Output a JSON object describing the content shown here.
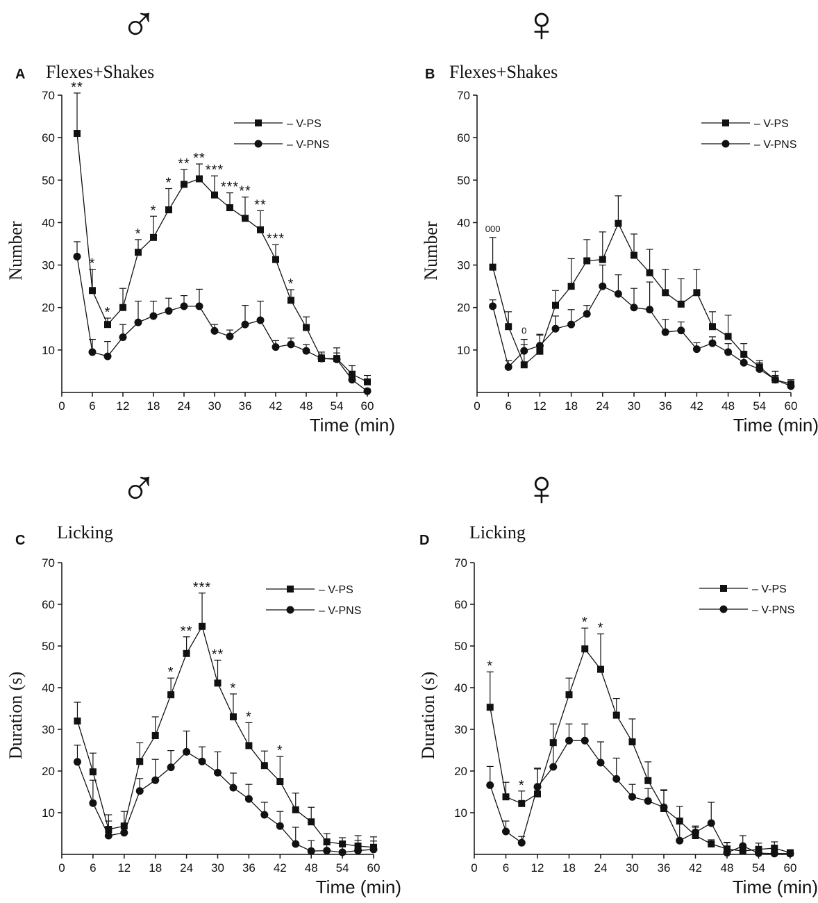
{
  "figure": {
    "symbols": {
      "male": "♂",
      "female": "♀"
    }
  },
  "chart_data": [
    {
      "type": "line",
      "panel_letter": "A",
      "title": "Flexes+Shakes",
      "sex": "male",
      "xlabel": "Time (min)",
      "ylabel": "Number",
      "xlim": [
        0,
        60
      ],
      "ylim": [
        0,
        70
      ],
      "xticks": [
        0,
        6,
        12,
        18,
        24,
        30,
        36,
        42,
        48,
        54,
        60
      ],
      "yticks": [
        10,
        20,
        30,
        40,
        50,
        60,
        70
      ],
      "legend_position": "top-right",
      "x": [
        3,
        6,
        9,
        12,
        15,
        18,
        21,
        24,
        27,
        30,
        33,
        36,
        39,
        42,
        45,
        48,
        51,
        54,
        57,
        60
      ],
      "series": [
        {
          "name": "– V-PS",
          "marker": "square",
          "values": [
            61,
            24,
            16,
            20,
            33,
            36.5,
            43,
            49,
            50.3,
            46.5,
            43.5,
            41,
            38.3,
            31.3,
            21.7,
            15.3,
            8,
            8,
            4.3,
            2.5
          ],
          "errors": [
            9.5,
            5,
            1.5,
            4.5,
            3,
            5,
            5,
            3.5,
            3.5,
            4.5,
            3.5,
            5,
            4.5,
            3.5,
            2.5,
            2.5,
            1.5,
            2.5,
            2,
            1.5
          ]
        },
        {
          "name": "– V-PNS",
          "marker": "circle",
          "values": [
            32,
            9.5,
            8.5,
            13,
            16.5,
            18,
            19.2,
            20.3,
            20.3,
            14.5,
            13.2,
            16,
            17,
            10.7,
            11.3,
            9.8,
            8,
            7.8,
            3,
            0.3
          ],
          "errors": [
            3.5,
            3,
            3.5,
            3,
            5,
            3.5,
            3,
            2.5,
            4,
            1.5,
            1.5,
            4.5,
            4.5,
            1.5,
            1.5,
            1.5,
            1,
            1.5,
            1.5,
            0.5
          ]
        }
      ],
      "annotations": [
        {
          "x": 3,
          "text": "**"
        },
        {
          "x": 6,
          "text": "*"
        },
        {
          "x": 9,
          "text": "*"
        },
        {
          "x": 15,
          "text": "*"
        },
        {
          "x": 18,
          "text": "*"
        },
        {
          "x": 21,
          "text": "*"
        },
        {
          "x": 24,
          "text": "**"
        },
        {
          "x": 27,
          "text": "**"
        },
        {
          "x": 30,
          "text": "***"
        },
        {
          "x": 33,
          "text": "***"
        },
        {
          "x": 36,
          "text": "**"
        },
        {
          "x": 39,
          "text": "**"
        },
        {
          "x": 42,
          "text": "***"
        },
        {
          "x": 45,
          "text": "*"
        }
      ]
    },
    {
      "type": "line",
      "panel_letter": "B",
      "title": "Flexes+Shakes",
      "sex": "female",
      "xlabel": "Time (min)",
      "ylabel": "Number",
      "xlim": [
        0,
        60
      ],
      "ylim": [
        0,
        70
      ],
      "xticks": [
        0,
        6,
        12,
        18,
        24,
        30,
        36,
        42,
        48,
        54,
        60
      ],
      "yticks": [
        10,
        20,
        30,
        40,
        50,
        60,
        70
      ],
      "legend_position": "top-right",
      "x": [
        3,
        6,
        9,
        12,
        15,
        18,
        21,
        24,
        27,
        30,
        33,
        36,
        39,
        42,
        45,
        48,
        51,
        54,
        57,
        60
      ],
      "series": [
        {
          "name": "– V-PS",
          "marker": "square",
          "values": [
            29.5,
            15.5,
            6.5,
            9.7,
            20.5,
            25,
            31,
            31.3,
            39.8,
            32.3,
            28.2,
            23.5,
            20.8,
            23.5,
            15.5,
            13.2,
            9,
            6,
            3,
            2
          ],
          "errors": [
            7,
            3.5,
            6,
            4,
            3.5,
            6.5,
            5,
            6.5,
            6.5,
            5,
            5.5,
            5.5,
            6,
            5.5,
            3.5,
            5,
            2.5,
            1.5,
            2,
            1
          ]
        },
        {
          "name": "– V-PNS",
          "marker": "circle",
          "values": [
            20.3,
            6,
            9.8,
            11,
            15,
            16,
            18.5,
            25,
            23.2,
            20,
            19.5,
            14.2,
            14.6,
            10.2,
            11.6,
            9.5,
            7,
            5.5,
            3,
            1.5
          ],
          "errors": [
            1.5,
            1.5,
            1.5,
            2.5,
            3,
            3.5,
            2,
            5,
            4.5,
            4.5,
            6.5,
            3,
            2,
            1.5,
            1.5,
            2,
            1.5,
            1.5,
            1,
            0.5
          ]
        }
      ],
      "annotations": [
        {
          "x": 3,
          "text": "000"
        },
        {
          "x": 9,
          "text": "0"
        }
      ]
    },
    {
      "type": "line",
      "panel_letter": "C",
      "title": "Licking",
      "sex": "male",
      "xlabel": "Time (min)",
      "ylabel": "Duration (s)",
      "xlim": [
        0,
        60
      ],
      "ylim": [
        0,
        70
      ],
      "xticks": [
        0,
        6,
        12,
        18,
        24,
        30,
        36,
        42,
        48,
        54,
        60
      ],
      "yticks": [
        10,
        20,
        30,
        40,
        50,
        60,
        70
      ],
      "legend_position": "top-right",
      "x": [
        3,
        6,
        9,
        12,
        15,
        18,
        21,
        24,
        27,
        30,
        33,
        36,
        39,
        42,
        45,
        48,
        51,
        54,
        57,
        60
      ],
      "series": [
        {
          "name": "– V-PS",
          "marker": "square",
          "values": [
            32,
            19.8,
            6,
            6.8,
            22.3,
            28.5,
            38.3,
            48.2,
            54.7,
            41.1,
            33,
            26.1,
            21.3,
            17.5,
            10.7,
            7.8,
            3,
            2.5,
            2,
            1.7
          ],
          "errors": [
            4.5,
            4.5,
            3.5,
            3.5,
            4.5,
            4.5,
            4,
            4,
            8,
            5.5,
            5.5,
            5.5,
            3.5,
            6,
            4,
            3.5,
            2,
            1.5,
            2.5,
            2.5
          ]
        },
        {
          "name": "– V-PNS",
          "marker": "circle",
          "values": [
            22.2,
            12.3,
            4.5,
            5.2,
            15.2,
            17.8,
            20.9,
            24.6,
            22.3,
            19.6,
            16,
            13.3,
            9.5,
            6.8,
            2.5,
            0.8,
            0.9,
            0.5,
            0.9,
            1.2
          ],
          "errors": [
            4,
            5.5,
            3.5,
            2,
            3,
            5,
            4,
            5,
            3.5,
            5,
            3.5,
            3.5,
            3,
            3.5,
            4,
            2.5,
            1.5,
            1.5,
            2.5,
            2
          ]
        }
      ],
      "annotations": [
        {
          "x": 21,
          "text": "*"
        },
        {
          "x": 24,
          "text": "**"
        },
        {
          "x": 27,
          "text": "***"
        },
        {
          "x": 30,
          "text": "**"
        },
        {
          "x": 33,
          "text": "*"
        },
        {
          "x": 36,
          "text": "*"
        },
        {
          "x": 42,
          "text": "*"
        }
      ]
    },
    {
      "type": "line",
      "panel_letter": "D",
      "title": "Licking",
      "sex": "female",
      "xlabel": "Time (min)",
      "ylabel": "Duration (s)",
      "xlim": [
        0,
        60
      ],
      "ylim": [
        0,
        70
      ],
      "xticks": [
        0,
        6,
        12,
        18,
        24,
        30,
        36,
        42,
        48,
        54,
        60
      ],
      "yticks": [
        10,
        20,
        30,
        40,
        50,
        60,
        70
      ],
      "legend_position": "top-right",
      "x": [
        3,
        6,
        9,
        12,
        15,
        18,
        21,
        24,
        27,
        30,
        33,
        36,
        39,
        42,
        45,
        48,
        51,
        54,
        57,
        60
      ],
      "series": [
        {
          "name": "– V-PS",
          "marker": "square",
          "values": [
            35.3,
            13.8,
            12.2,
            14.5,
            26.8,
            38.3,
            49.3,
            44.4,
            33.4,
            27,
            17.7,
            11,
            8,
            4.5,
            2.5,
            1.3,
            0.8,
            1.2,
            1.5,
            0.4
          ],
          "errors": [
            8.5,
            3.5,
            3,
            6,
            4.5,
            4,
            5,
            8.5,
            4,
            5.5,
            4.5,
            4.5,
            3.5,
            2,
            1,
            1.5,
            1.5,
            1.5,
            1.5,
            0.5
          ]
        },
        {
          "name": "– V-PNS",
          "marker": "circle",
          "values": [
            16.6,
            5.5,
            2.8,
            16.2,
            21,
            27.3,
            27.3,
            22,
            18.1,
            13.8,
            12.8,
            11.3,
            3.3,
            5.3,
            7.5,
            0.4,
            2,
            0.3,
            0.2,
            0.2
          ],
          "errors": [
            4.5,
            2.5,
            1.5,
            4.5,
            6.5,
            4,
            4,
            5,
            5,
            3,
            3,
            4,
            4,
            1.5,
            5,
            2.5,
            2.5,
            1,
            1,
            0.5
          ]
        }
      ],
      "annotations": [
        {
          "x": 3,
          "text": "*"
        },
        {
          "x": 9,
          "text": "*"
        },
        {
          "x": 21,
          "text": "*"
        },
        {
          "x": 24,
          "text": "*"
        }
      ]
    }
  ]
}
